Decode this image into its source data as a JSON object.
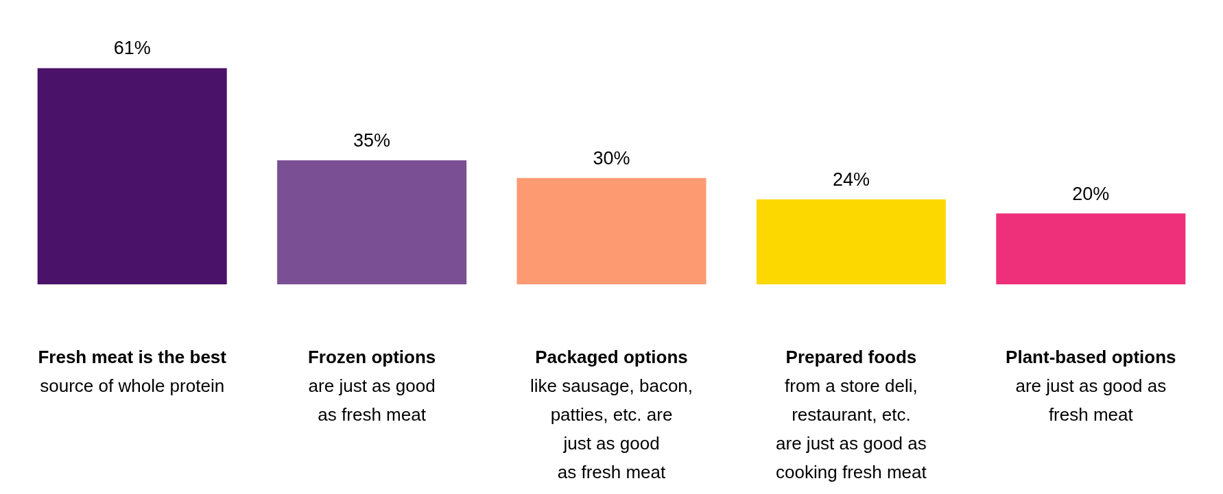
{
  "chart_data": {
    "type": "bar",
    "categories": [
      "Fresh meat is the best\nsource of whole protein",
      "Frozen options\nare just as good\nas fresh meat",
      "Packaged options\nlike sausage, bacon,\npatties, etc. are\njust as good\nas fresh meat",
      "Prepared foods\nfrom a store deli,\nrestaurant, etc.\nare just as good as\ncooking fresh meat",
      "Plant-based options\nare just as good as\nfresh meat"
    ],
    "values": [
      61,
      35,
      30,
      24,
      20
    ],
    "colors": [
      "#4b1269",
      "#7b4f93",
      "#fe9a72",
      "#fdd800",
      "#ee2f7a"
    ],
    "value_labels": [
      "61%",
      "35%",
      "30%",
      "24%",
      "20%"
    ]
  }
}
